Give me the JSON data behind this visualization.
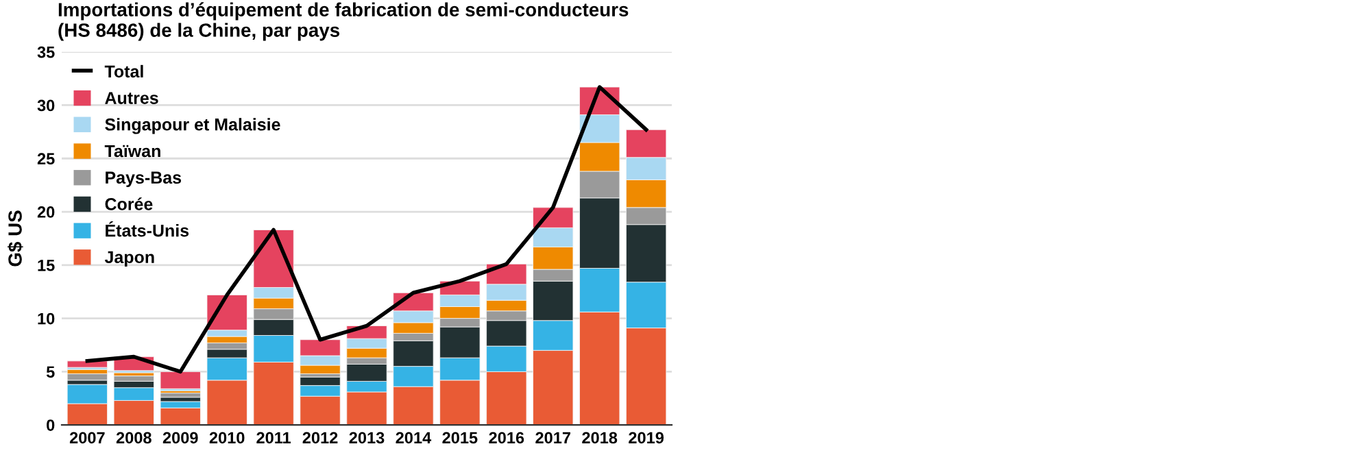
{
  "chart_data": {
    "type": "bar",
    "title": "Importations d’équipement de fabrication de semi-conducteurs\n(HS 8486) de la Chine, par pays",
    "ylabel": "G$ US",
    "categories": [
      "2007",
      "2008",
      "2009",
      "2010",
      "2011",
      "2012",
      "2013",
      "2014",
      "2015",
      "2016",
      "2017",
      "2018",
      "2019"
    ],
    "stacked": true,
    "ylim": [
      0,
      35
    ],
    "yticks": [
      0,
      5,
      10,
      15,
      20,
      25,
      30,
      35
    ],
    "grid": "y",
    "legend": "top left",
    "series": [
      {
        "name": "Japon",
        "color": "#e95b35",
        "values": [
          2.0,
          2.3,
          1.6,
          4.2,
          5.9,
          2.7,
          3.1,
          3.6,
          4.2,
          5.0,
          7.0,
          10.6,
          9.1
        ]
      },
      {
        "name": "États-Unis",
        "color": "#35b3e5",
        "values": [
          1.8,
          1.2,
          0.6,
          2.1,
          2.5,
          1.0,
          1.0,
          1.9,
          2.1,
          2.4,
          2.8,
          4.1,
          4.3
        ]
      },
      {
        "name": "Corée",
        "color": "#223133",
        "values": [
          0.4,
          0.6,
          0.4,
          0.8,
          1.5,
          0.8,
          1.6,
          2.4,
          2.9,
          2.4,
          3.7,
          6.6,
          5.4
        ]
      },
      {
        "name": "Pays-Bas",
        "color": "#9a9a9a",
        "values": [
          0.6,
          0.5,
          0.4,
          0.6,
          1.0,
          0.3,
          0.6,
          0.7,
          0.8,
          0.9,
          1.1,
          2.5,
          1.6
        ]
      },
      {
        "name": "Taïwan",
        "color": "#ef8a00",
        "values": [
          0.4,
          0.3,
          0.2,
          0.6,
          1.0,
          0.8,
          0.9,
          1.0,
          1.1,
          1.0,
          2.1,
          2.7,
          2.6
        ]
      },
      {
        "name": "Singapour et Malaisie",
        "color": "#a9d8f2",
        "values": [
          0.2,
          0.2,
          0.2,
          0.6,
          1.0,
          0.9,
          0.9,
          1.1,
          1.1,
          1.5,
          1.8,
          2.6,
          2.1
        ]
      },
      {
        "name": "Autres",
        "color": "#e5435f",
        "values": [
          0.6,
          1.3,
          1.6,
          3.3,
          5.4,
          1.5,
          1.2,
          1.7,
          1.3,
          1.9,
          1.9,
          2.6,
          2.6
        ]
      },
      {
        "name": "Total",
        "type": "line",
        "color": "#000000",
        "values": [
          6.0,
          6.4,
          5.0,
          12.2,
          18.3,
          8.0,
          9.3,
          12.4,
          13.5,
          15.1,
          20.4,
          31.7,
          27.7
        ]
      }
    ]
  }
}
